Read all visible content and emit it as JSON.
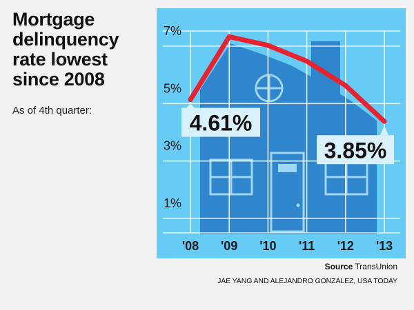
{
  "title": "Mortgage delinquency rate lowest since 2008",
  "subtitle": "As of 4th quarter:",
  "source_label": "Source",
  "source_name": "TransUnion",
  "credit": "JAE YANG AND ALEJANDRO GONZALEZ, USA TODAY",
  "colors": {
    "panel": "#66ccf5",
    "house": "#2f86cc",
    "line": "#e8222e",
    "grid": "#ffffff"
  },
  "chart_data": {
    "type": "line",
    "x": [
      "'08",
      "'09",
      "'10",
      "'11",
      "'12",
      "'13"
    ],
    "series": [
      {
        "values": [
          4.61,
          6.8,
          6.5,
          5.95,
          5.1,
          3.85
        ]
      }
    ],
    "yticks": [
      "7%",
      "5%",
      "3%",
      "1%"
    ],
    "ytick_values": [
      7,
      5,
      3,
      1
    ],
    "ylim": [
      0,
      7
    ],
    "grid": true,
    "annotations": [
      {
        "text": "4.61%",
        "index": 0
      },
      {
        "text": "3.85%",
        "index": 5
      }
    ],
    "background_illustration": "house-icon"
  }
}
